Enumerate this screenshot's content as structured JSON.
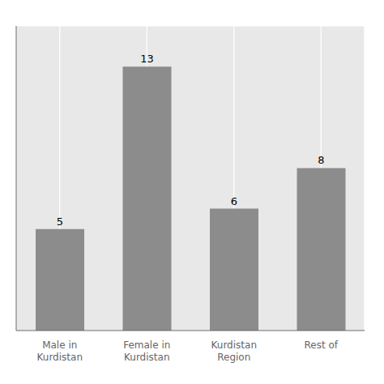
{
  "chart_data": {
    "type": "bar",
    "categories": [
      "Male in\nKurdistan",
      "Female in\nKurdistan",
      "Kurdistan\nRegion",
      "Rest of"
    ],
    "values": [
      5,
      13,
      6,
      8
    ],
    "color": "#8c8c8c",
    "ylim": [
      0,
      15
    ],
    "yticks": [
      0,
      2,
      4,
      6,
      8,
      10,
      12,
      14
    ],
    "grid": true,
    "data_labels": true,
    "tick_labels": "x"
  }
}
